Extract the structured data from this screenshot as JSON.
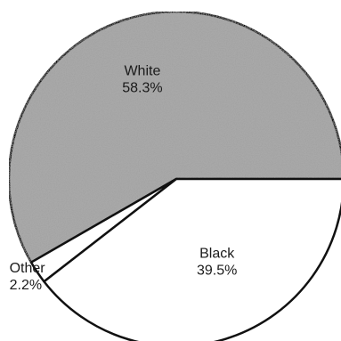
{
  "chart_data": {
    "type": "pie",
    "start_angle_deg": 0,
    "direction": "counterclockwise",
    "slices": [
      {
        "label": "White",
        "value": 58.3,
        "value_text": "58.3%",
        "fill": "#a9a9a9",
        "pattern": "speckled-halftone"
      },
      {
        "label": "Other",
        "value": 2.2,
        "value_text": "2.2%",
        "fill": "#ffffff",
        "pattern": "none"
      },
      {
        "label": "Black",
        "value": 39.5,
        "value_text": "39.5%",
        "fill": "#ffffff",
        "pattern": "none"
      }
    ],
    "legend": "none"
  }
}
